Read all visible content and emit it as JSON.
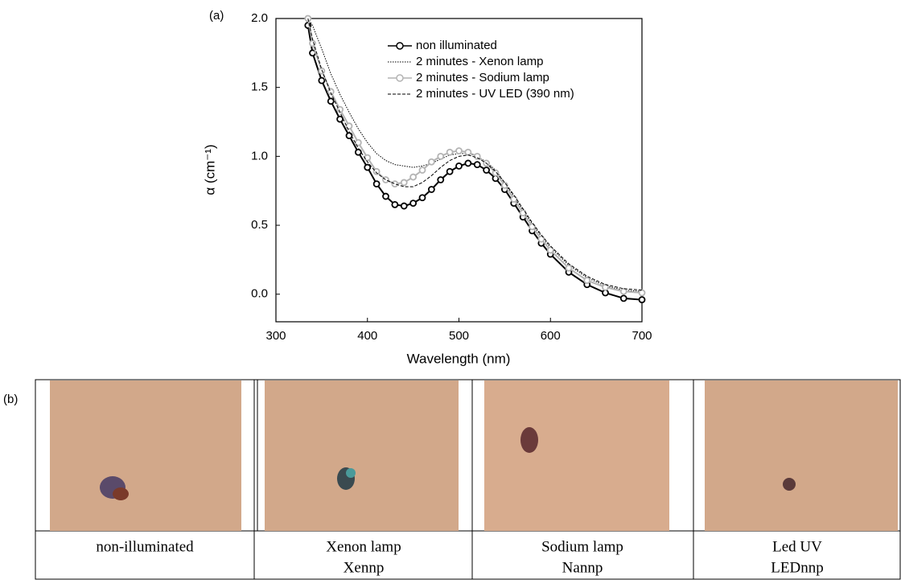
{
  "chart_data": {
    "type": "line",
    "panel_label": "(a)",
    "xlabel": "Wavelength (nm)",
    "ylabel": "α (cm⁻¹)",
    "x": [
      335,
      340,
      350,
      360,
      370,
      380,
      390,
      400,
      410,
      420,
      430,
      440,
      450,
      460,
      470,
      480,
      490,
      500,
      510,
      520,
      530,
      540,
      550,
      560,
      570,
      580,
      590,
      600,
      620,
      640,
      660,
      680,
      700
    ],
    "xlim": [
      300,
      700
    ],
    "xticks": [
      300,
      400,
      500,
      600,
      700
    ],
    "ylim": [
      -0.2,
      2.0
    ],
    "yticks": [
      {
        "value": 0,
        "label": "0.0"
      },
      {
        "value": 0.5,
        "label": "0.5"
      },
      {
        "value": 1,
        "label": "1.0"
      },
      {
        "value": 1.5,
        "label": "1.5"
      },
      {
        "value": 2,
        "label": "2.0"
      }
    ],
    "series": [
      {
        "name": "non illuminated",
        "color": "#000000",
        "style": "circles",
        "values": [
          1.95,
          1.75,
          1.55,
          1.4,
          1.27,
          1.15,
          1.03,
          0.92,
          0.8,
          0.71,
          0.65,
          0.64,
          0.66,
          0.7,
          0.76,
          0.83,
          0.89,
          0.93,
          0.95,
          0.94,
          0.9,
          0.84,
          0.76,
          0.66,
          0.56,
          0.46,
          0.37,
          0.29,
          0.16,
          0.07,
          0.01,
          -0.03,
          -0.04
        ]
      },
      {
        "name": "2 minutes - Xenon lamp",
        "color": "#000000",
        "style": "dotted",
        "values": [
          2.0,
          1.95,
          1.78,
          1.6,
          1.45,
          1.32,
          1.2,
          1.1,
          1.02,
          0.97,
          0.94,
          0.93,
          0.92,
          0.93,
          0.95,
          0.98,
          1.01,
          1.02,
          1.02,
          1.0,
          0.96,
          0.9,
          0.81,
          0.71,
          0.61,
          0.51,
          0.42,
          0.34,
          0.21,
          0.12,
          0.06,
          0.03,
          0.02
        ]
      },
      {
        "name": "2 minutes - Sodium lamp",
        "color": "#b4b4b4",
        "style": "circles",
        "values": [
          2.0,
          1.82,
          1.62,
          1.47,
          1.34,
          1.22,
          1.1,
          0.99,
          0.89,
          0.83,
          0.8,
          0.81,
          0.85,
          0.9,
          0.96,
          1.0,
          1.03,
          1.04,
          1.03,
          1.0,
          0.95,
          0.88,
          0.79,
          0.69,
          0.59,
          0.49,
          0.4,
          0.32,
          0.19,
          0.1,
          0.05,
          0.02,
          0.01
        ]
      },
      {
        "name": "2 minutes - UV LED (390 nm)",
        "color": "#000000",
        "style": "dashed",
        "values": [
          2.0,
          1.85,
          1.63,
          1.46,
          1.32,
          1.18,
          1.06,
          0.96,
          0.88,
          0.83,
          0.8,
          0.78,
          0.78,
          0.81,
          0.86,
          0.92,
          0.97,
          1.0,
          1.01,
          0.99,
          0.95,
          0.89,
          0.81,
          0.72,
          0.62,
          0.52,
          0.43,
          0.35,
          0.22,
          0.13,
          0.07,
          0.04,
          0.03
        ]
      }
    ]
  },
  "photos": {
    "panel_label": "(b)",
    "captions": [
      [
        "non-illuminated"
      ],
      [
        "Xenon lamp",
        "Xennp"
      ],
      [
        "Sodium lamp",
        "Nannp"
      ],
      [
        "Led UV",
        "LEDnnp"
      ]
    ]
  }
}
